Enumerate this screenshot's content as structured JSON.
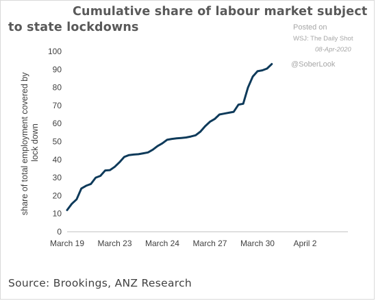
{
  "header": {
    "title_line1": "Cumulative share of labour market subject",
    "title_line2": "to state lockdowns"
  },
  "watermark": {
    "posted": "Posted on",
    "source": "WSJ: The Daily Shot",
    "date": "08-Apr-2020",
    "handle": "@SoberLook"
  },
  "footer": {
    "source": "Source: Brookings, ANZ Research"
  },
  "chart_data": {
    "type": "line",
    "title": "Cumulative share of labour market subject to state lockdowns",
    "ylabel_lines": [
      "share of total employment covered by",
      "lock down"
    ],
    "xlabel": "",
    "ylim": [
      0,
      100
    ],
    "yticks": [
      0,
      10,
      20,
      30,
      40,
      50,
      60,
      70,
      80,
      90,
      100
    ],
    "xlim": [
      0,
      59
    ],
    "x_ticks": [
      {
        "label": "March 19",
        "x": 0
      },
      {
        "label": "March 23",
        "x": 10
      },
      {
        "label": "March 24",
        "x": 20
      },
      {
        "label": "March 27",
        "x": 30
      },
      {
        "label": "March 30",
        "x": 40
      },
      {
        "label": "April 2",
        "x": 50
      }
    ],
    "grid": false,
    "legend": "none",
    "line_color": "#0e3a5a",
    "series": [
      {
        "values": [
          [
            0,
            12
          ],
          [
            1,
            15.5
          ],
          [
            2,
            18
          ],
          [
            3,
            24
          ],
          [
            4,
            25.5
          ],
          [
            5,
            26.5
          ],
          [
            6,
            30
          ],
          [
            7,
            31
          ],
          [
            8,
            34
          ],
          [
            9,
            34.2
          ],
          [
            10,
            36
          ],
          [
            11,
            38.5
          ],
          [
            12,
            41.5
          ],
          [
            13,
            42.5
          ],
          [
            14,
            42.8
          ],
          [
            15,
            43
          ],
          [
            16,
            43.5
          ],
          [
            17,
            44
          ],
          [
            18,
            45.5
          ],
          [
            19,
            47.5
          ],
          [
            20,
            49
          ],
          [
            21,
            51
          ],
          [
            22,
            51.5
          ],
          [
            23,
            51.8
          ],
          [
            24,
            52
          ],
          [
            25,
            52.3
          ],
          [
            26,
            52.8
          ],
          [
            27,
            53.5
          ],
          [
            28,
            55.5
          ],
          [
            29,
            58.5
          ],
          [
            30,
            61
          ],
          [
            31,
            62.5
          ],
          [
            32,
            65
          ],
          [
            33,
            65.5
          ],
          [
            34,
            66
          ],
          [
            35,
            66.5
          ],
          [
            36,
            70.5
          ],
          [
            37,
            71
          ],
          [
            38,
            80
          ],
          [
            39,
            86
          ],
          [
            40,
            89
          ],
          [
            41,
            89.5
          ],
          [
            42,
            90.5
          ],
          [
            43,
            93
          ]
        ]
      }
    ]
  }
}
